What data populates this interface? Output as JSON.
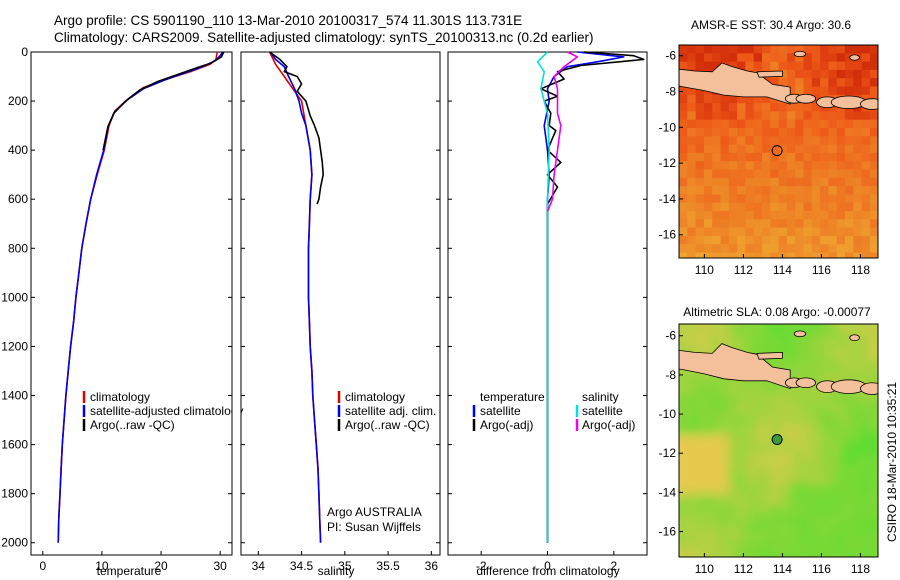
{
  "header": {
    "line1": "Argo profile: CS 5901190_110 13-Mar-2010 20100317_574 11.301S 113.731E",
    "line2": "Climatology: CARS2009. Satellite-adjusted climatology: synTS_20100313.nc (0.2d earlier)"
  },
  "footer": {
    "credit": "CSIRO 18-Mar-2010 10:35:21"
  },
  "colors": {
    "climatology": "#e00000",
    "satellite": "#0000ee",
    "argo": "#000000",
    "salinity_satellite": "#00e0e0",
    "salinity_argo": "#ee00ee",
    "land": "#f4c09c"
  },
  "chart_data": [
    {
      "id": "temperature",
      "type": "line",
      "xlabel": "temperature",
      "ylabel": "",
      "xlim": [
        -2,
        32
      ],
      "ylim": [
        2050,
        0
      ],
      "xticks": [
        0,
        10,
        20,
        30
      ],
      "yticks": [
        0,
        200,
        400,
        600,
        800,
        1000,
        1200,
        1400,
        1600,
        1800,
        2000
      ],
      "legend_position": "lower-right",
      "legend": [
        "climatology",
        "satellite-adjusted climatology",
        "Argo(..raw -QC)"
      ],
      "series": [
        {
          "name": "climatology",
          "color": "#e00000",
          "points": [
            [
              29.5,
              0
            ],
            [
              29.3,
              30
            ],
            [
              28.3,
              50
            ],
            [
              25,
              80
            ],
            [
              21,
              110
            ],
            [
              17,
              145
            ],
            [
              14.5,
              190
            ],
            [
              12.2,
              240
            ],
            [
              11.2,
              300
            ],
            [
              10.4,
              400
            ],
            [
              9.2,
              500
            ],
            [
              8.1,
              600
            ],
            [
              7.3,
              700
            ],
            [
              6.6,
              800
            ],
            [
              6.1,
              900
            ],
            [
              5.6,
              1000
            ],
            [
              5.2,
              1100
            ],
            [
              4.7,
              1200
            ],
            [
              4.3,
              1300
            ],
            [
              3.9,
              1400
            ],
            [
              3.6,
              1500
            ],
            [
              3.3,
              1600
            ],
            [
              3.1,
              1700
            ],
            [
              2.9,
              1800
            ],
            [
              2.7,
              1900
            ],
            [
              2.6,
              2000
            ]
          ]
        },
        {
          "name": "satellite-adjusted climatology",
          "color": "#0000ee",
          "points": [
            [
              30.4,
              0
            ],
            [
              30,
              15
            ],
            [
              29.2,
              35
            ],
            [
              27,
              60
            ],
            [
              24,
              85
            ],
            [
              20.5,
              115
            ],
            [
              17,
              150
            ],
            [
              14.3,
              195
            ],
            [
              12.1,
              245
            ],
            [
              11.1,
              300
            ],
            [
              10.3,
              400
            ],
            [
              9.1,
              500
            ],
            [
              8.1,
              600
            ],
            [
              7.3,
              700
            ],
            [
              6.6,
              800
            ],
            [
              6.1,
              900
            ],
            [
              5.6,
              1000
            ],
            [
              5.2,
              1100
            ],
            [
              4.7,
              1200
            ],
            [
              4.3,
              1300
            ],
            [
              3.9,
              1400
            ],
            [
              3.6,
              1500
            ],
            [
              3.3,
              1600
            ],
            [
              3.1,
              1700
            ],
            [
              2.9,
              1800
            ],
            [
              2.7,
              1900
            ],
            [
              2.6,
              2000
            ]
          ]
        },
        {
          "name": "Argo(..raw -QC)",
          "color": "#000000",
          "points": [
            [
              30.6,
              0
            ],
            [
              30.2,
              20
            ],
            [
              28.5,
              45
            ],
            [
              26,
              65
            ],
            [
              23,
              90
            ],
            [
              19.5,
              120
            ],
            [
              16.4,
              155
            ],
            [
              14,
              200
            ],
            [
              12,
              250
            ],
            [
              11,
              305
            ],
            [
              10.2,
              400
            ]
          ]
        }
      ]
    },
    {
      "id": "salinity",
      "type": "line",
      "xlabel": "salinity",
      "ylabel": "",
      "xlim": [
        33.8,
        36.1
      ],
      "ylim": [
        2050,
        0
      ],
      "xticks": [
        34,
        34.5,
        35,
        35.5,
        36
      ],
      "yticks": [
        0,
        200,
        400,
        600,
        800,
        1000,
        1200,
        1400,
        1600,
        1800,
        2000
      ],
      "legend_position": "lower-right",
      "legend": [
        "climatology",
        "satellite adj. clim.",
        "Argo(..raw -QC)"
      ],
      "annotations": [
        "Argo AUSTRALIA",
        "PI: Susan Wijffels"
      ],
      "series": [
        {
          "name": "climatology",
          "color": "#e00000",
          "points": [
            [
              34.13,
              0
            ],
            [
              34.2,
              50
            ],
            [
              34.3,
              100
            ],
            [
              34.4,
              150
            ],
            [
              34.5,
              200
            ],
            [
              34.55,
              300
            ],
            [
              34.6,
              400
            ],
            [
              34.62,
              500
            ],
            [
              34.6,
              600
            ],
            [
              34.59,
              700
            ],
            [
              34.58,
              800
            ],
            [
              34.58,
              900
            ],
            [
              34.58,
              1000
            ],
            [
              34.59,
              1100
            ],
            [
              34.6,
              1200
            ],
            [
              34.62,
              1300
            ],
            [
              34.63,
              1400
            ],
            [
              34.65,
              1500
            ],
            [
              34.67,
              1600
            ],
            [
              34.69,
              1700
            ],
            [
              34.7,
              1800
            ],
            [
              34.71,
              1900
            ],
            [
              34.72,
              2000
            ]
          ]
        },
        {
          "name": "satellite adj. clim.",
          "color": "#0000ee",
          "points": [
            [
              34.14,
              0
            ],
            [
              34.2,
              30
            ],
            [
              34.3,
              60
            ],
            [
              34.35,
              100
            ],
            [
              34.42,
              150
            ],
            [
              34.47,
              200
            ],
            [
              34.5,
              250
            ],
            [
              34.55,
              300
            ],
            [
              34.6,
              400
            ],
            [
              34.62,
              500
            ],
            [
              34.6,
              600
            ],
            [
              34.59,
              700
            ],
            [
              34.58,
              800
            ],
            [
              34.58,
              900
            ],
            [
              34.58,
              1000
            ],
            [
              34.59,
              1100
            ],
            [
              34.6,
              1200
            ],
            [
              34.62,
              1300
            ],
            [
              34.63,
              1400
            ],
            [
              34.65,
              1500
            ],
            [
              34.67,
              1600
            ],
            [
              34.69,
              1700
            ],
            [
              34.7,
              1800
            ],
            [
              34.71,
              1900
            ],
            [
              34.72,
              2000
            ]
          ]
        },
        {
          "name": "Argo(..raw -QC)",
          "color": "#000000",
          "points": [
            [
              34.13,
              0
            ],
            [
              34.25,
              30
            ],
            [
              34.33,
              60
            ],
            [
              34.3,
              80
            ],
            [
              34.45,
              100
            ],
            [
              34.5,
              130
            ],
            [
              34.45,
              160
            ],
            [
              34.55,
              200
            ],
            [
              34.6,
              260
            ],
            [
              34.65,
              300
            ],
            [
              34.7,
              350
            ],
            [
              34.72,
              400
            ],
            [
              34.74,
              450
            ],
            [
              34.75,
              500
            ],
            [
              34.72,
              550
            ],
            [
              34.7,
              600
            ],
            [
              34.68,
              620
            ]
          ]
        }
      ]
    },
    {
      "id": "difference",
      "type": "line",
      "xlabel": "difference from climatology",
      "ylabel": "",
      "xlim": [
        -3,
        3
      ],
      "ylim": [
        2050,
        0
      ],
      "xticks": [
        -2,
        0,
        2
      ],
      "yticks": [
        0,
        200,
        400,
        600,
        800,
        1000,
        1200,
        1400,
        1600,
        1800,
        2000
      ],
      "legend_position": "lower",
      "legend_groups": [
        {
          "title": "temperature",
          "items": [
            "satellite",
            "Argo(-adj)"
          ]
        },
        {
          "title": "salinity",
          "items": [
            "satellite",
            "Argo(-adj)"
          ]
        }
      ],
      "series": [
        {
          "name": "temperature satellite",
          "color": "#0000ee",
          "points": [
            [
              0.9,
              0
            ],
            [
              2.3,
              20
            ],
            [
              1.5,
              40
            ],
            [
              0.6,
              60
            ],
            [
              0.2,
              100
            ],
            [
              0.0,
              150
            ],
            [
              0.05,
              200
            ],
            [
              -0.1,
              300
            ],
            [
              0.0,
              400
            ],
            [
              0.05,
              500
            ],
            [
              0.0,
              600
            ],
            [
              0.0,
              800
            ],
            [
              0.0,
              1000
            ],
            [
              0.0,
              1200
            ],
            [
              0.0,
              1400
            ],
            [
              0.0,
              1600
            ],
            [
              0.0,
              1800
            ],
            [
              0.0,
              2000
            ]
          ]
        },
        {
          "name": "temperature Argo(-adj)",
          "color": "#000000",
          "points": [
            [
              1.1,
              0
            ],
            [
              2.6,
              15
            ],
            [
              2.9,
              30
            ],
            [
              1.0,
              55
            ],
            [
              0.3,
              80
            ],
            [
              0.5,
              110
            ],
            [
              -0.2,
              150
            ],
            [
              0.3,
              180
            ],
            [
              -0.1,
              200
            ],
            [
              0.1,
              250
            ],
            [
              0.05,
              300
            ],
            [
              0.25,
              320
            ],
            [
              0.0,
              400
            ],
            [
              0.4,
              450
            ],
            [
              0.0,
              500
            ],
            [
              0.3,
              550
            ],
            [
              0.0,
              620
            ],
            [
              0.0,
              900
            ],
            [
              0.0,
              1200
            ],
            [
              0.0,
              1500
            ],
            [
              0.0,
              1800
            ],
            [
              0.0,
              2000
            ]
          ]
        },
        {
          "name": "salinity satellite",
          "color": "#00e0e0",
          "points": [
            [
              0.0,
              0
            ],
            [
              -0.3,
              40
            ],
            [
              -0.1,
              80
            ],
            [
              -0.2,
              150
            ],
            [
              0.0,
              250
            ],
            [
              0.05,
              400
            ],
            [
              0.0,
              600
            ],
            [
              0.0,
              800
            ],
            [
              0.0,
              1000
            ],
            [
              0.0,
              1200
            ],
            [
              0.0,
              1400
            ],
            [
              0.0,
              1600
            ],
            [
              0.0,
              1800
            ],
            [
              0.0,
              2000
            ]
          ]
        },
        {
          "name": "salinity Argo(-adj)",
          "color": "#ee00ee",
          "points": [
            [
              0.6,
              0
            ],
            [
              0.9,
              20
            ],
            [
              0.5,
              60
            ],
            [
              0.2,
              100
            ],
            [
              0.3,
              150
            ],
            [
              0.3,
              250
            ],
            [
              0.4,
              300
            ],
            [
              0.3,
              400
            ],
            [
              0.2,
              500
            ],
            [
              0.15,
              600
            ],
            [
              0.0,
              650
            ]
          ]
        }
      ]
    },
    {
      "id": "sst_map",
      "type": "heatmap",
      "title": "AMSR-E SST: 30.4 Argo: 30.6",
      "xlim": [
        108.7,
        118.9
      ],
      "ylim": [
        -17.3,
        -5.4
      ],
      "xticks": [
        110,
        112,
        114,
        116,
        118
      ],
      "yticks": [
        -6,
        -8,
        -10,
        -12,
        -14,
        -16
      ],
      "argo_position": {
        "lon": 113.73,
        "lat": -11.3
      }
    },
    {
      "id": "sla_map",
      "type": "heatmap",
      "title": "Altimetric SLA: 0.08 Argo: -0.00077",
      "xlim": [
        108.7,
        118.9
      ],
      "ylim": [
        -17.3,
        -5.4
      ],
      "xticks": [
        110,
        112,
        114,
        116,
        118
      ],
      "yticks": [
        -6,
        -8,
        -10,
        -12,
        -14,
        -16
      ],
      "argo_position": {
        "lon": 113.73,
        "lat": -11.3
      }
    }
  ]
}
